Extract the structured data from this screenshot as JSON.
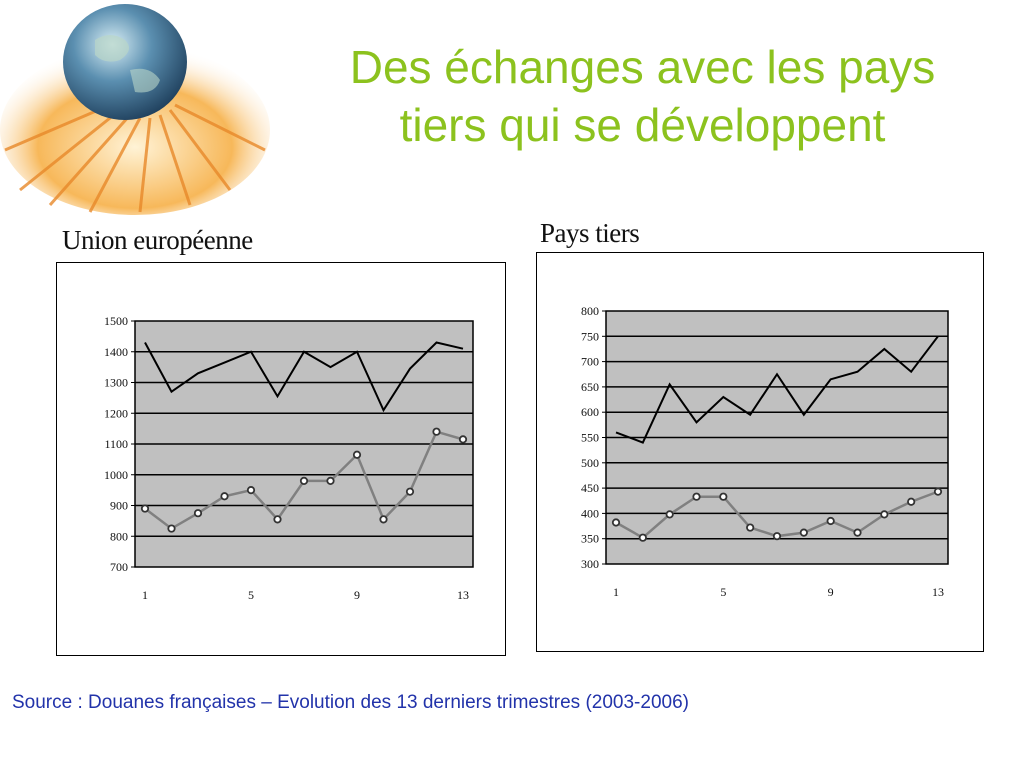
{
  "slide": {
    "title_line1": "Des échanges avec les pays",
    "title_line2": "tiers qui se développent",
    "source": "Source : Douanes françaises – Evolution des 13 derniers trimestres (2003-2006)",
    "title_color": "#8cc21e",
    "source_color": "#2233aa"
  },
  "chart_data": [
    {
      "type": "line",
      "title": "Union européenne",
      "xlabel": "",
      "ylabel": "",
      "x": [
        1,
        2,
        3,
        4,
        5,
        6,
        7,
        8,
        9,
        10,
        11,
        12,
        13
      ],
      "x_tick_labels": [
        "1",
        "5",
        "9",
        "13"
      ],
      "y_tick_labels": [
        "700",
        "800",
        "900",
        "1000",
        "1100",
        "1200",
        "1300",
        "1400",
        "1500"
      ],
      "ylim": [
        700,
        1500
      ],
      "grid": true,
      "plot_background": "#c0c0c0",
      "series": [
        {
          "values": [
            1430,
            1270,
            1330,
            1365,
            1400,
            1255,
            1400,
            1350,
            1400,
            1210,
            1345,
            1430,
            1410
          ],
          "color": "#000000",
          "markers": false
        },
        {
          "values": [
            890,
            825,
            875,
            930,
            950,
            855,
            980,
            980,
            1065,
            855,
            945,
            1140,
            1115
          ],
          "color": "#808080",
          "markers": true
        }
      ]
    },
    {
      "type": "line",
      "title": "Pays tiers",
      "xlabel": "",
      "ylabel": "",
      "x": [
        1,
        2,
        3,
        4,
        5,
        6,
        7,
        8,
        9,
        10,
        11,
        12,
        13
      ],
      "x_tick_labels": [
        "1",
        "5",
        "9",
        "13"
      ],
      "y_tick_labels": [
        "300",
        "350",
        "400",
        "450",
        "500",
        "550",
        "600",
        "650",
        "700",
        "750",
        "800"
      ],
      "ylim": [
        300,
        800
      ],
      "grid": true,
      "plot_background": "#c0c0c0",
      "series": [
        {
          "values": [
            560,
            540,
            655,
            580,
            630,
            595,
            675,
            595,
            665,
            680,
            725,
            680,
            750
          ],
          "color": "#000000",
          "markers": false
        },
        {
          "values": [
            382,
            352,
            398,
            433,
            433,
            372,
            355,
            362,
            385,
            362,
            398,
            423,
            443
          ],
          "color": "#808080",
          "markers": true
        }
      ]
    }
  ]
}
